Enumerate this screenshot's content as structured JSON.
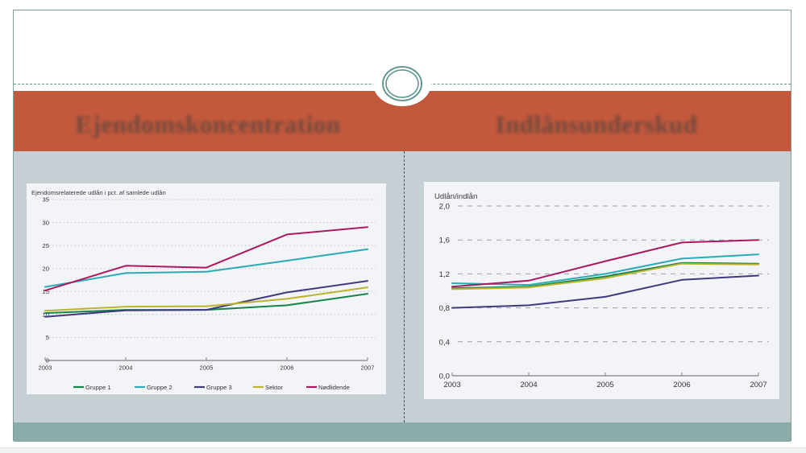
{
  "slide": {
    "titles": [
      {
        "text": "Ejendomskoncentration"
      },
      {
        "text": "Indlånsunderskud"
      }
    ]
  },
  "theme": {
    "banner": "#c3593c",
    "frame": "#7f9e9e",
    "rule": "#639390",
    "content_bg": "#c6cfd4",
    "footer": "#8caca9",
    "panel_bg": "#f3f4f8",
    "divider": "#3d4f66",
    "title_text": "#5f443c"
  },
  "chart_data": [
    {
      "type": "line",
      "title": "Ejendomsrelaterede udlån i pct. af samlede udlån",
      "categories": [
        "2003",
        "2004",
        "2005",
        "2006",
        "2007"
      ],
      "series": [
        {
          "name": "Gruppe 1",
          "color": "#168449",
          "values": [
            10.3,
            11.0,
            11.0,
            12.0,
            14.5
          ]
        },
        {
          "name": "Gruppe 2",
          "color": "#2aabb5",
          "values": [
            16.0,
            19.0,
            19.3,
            21.7,
            24.2
          ]
        },
        {
          "name": "Gruppe 3",
          "color": "#403a7d",
          "values": [
            9.5,
            10.9,
            11.0,
            14.8,
            17.3
          ]
        },
        {
          "name": "Sektor",
          "color": "#bdb22e",
          "values": [
            10.8,
            11.7,
            11.8,
            13.4,
            15.9
          ]
        },
        {
          "name": "Nødlidende",
          "color": "#ab1a5e",
          "values": [
            15.2,
            20.6,
            20.2,
            27.4,
            29.0
          ]
        }
      ],
      "ylim": [
        0,
        35
      ],
      "ytick_labels": [
        "0",
        "5",
        "10",
        "15",
        "20",
        "25",
        "30",
        "35"
      ],
      "grid": true,
      "legend_position": "bottom"
    },
    {
      "type": "line",
      "title": "Udlån/indlån",
      "categories": [
        "2003",
        "2004",
        "2005",
        "2006",
        "2007"
      ],
      "series": [
        {
          "name": "Gruppe 1",
          "color": "#168449",
          "values": [
            1.03,
            1.05,
            1.17,
            1.33,
            1.32
          ]
        },
        {
          "name": "Gruppe 2",
          "color": "#2aabb5",
          "values": [
            1.09,
            1.07,
            1.2,
            1.38,
            1.43
          ]
        },
        {
          "name": "Gruppe 3",
          "color": "#403a7d",
          "values": [
            0.8,
            0.83,
            0.93,
            1.13,
            1.18
          ]
        },
        {
          "name": "Sektor",
          "color": "#bdb22e",
          "values": [
            1.02,
            1.04,
            1.15,
            1.32,
            1.31
          ]
        },
        {
          "name": "Nødlidende",
          "color": "#ab1a5e",
          "values": [
            1.05,
            1.12,
            1.35,
            1.57,
            1.6
          ]
        }
      ],
      "ylim": [
        0,
        2.0
      ],
      "ytick_labels": [
        "0,0",
        "0,4",
        "0,8",
        "1,2",
        "1,6",
        "2,0"
      ],
      "grid": true,
      "legend_position": "none"
    }
  ]
}
